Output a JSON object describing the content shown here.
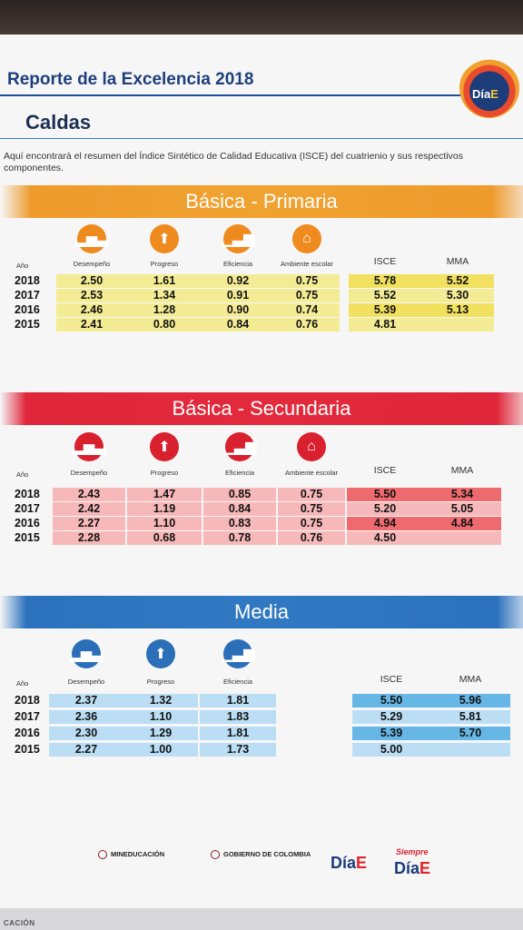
{
  "header": {
    "title": "Reporte de la Excelencia 2018",
    "region": "Caldas",
    "logo": {
      "text": "Día",
      "accent": "E"
    }
  },
  "intro": "Aquí encontrará el resumen del Índice Sintético de Calidad Educativa (ISCE) del cuatrienio y sus respectivos componentes.",
  "columns": {
    "year": "Año",
    "desempeno": "Desempeño",
    "progreso": "Progreso",
    "eficiencia": "Eficiencia",
    "ambiente": "Ambiente escolar",
    "isce": "ISCE",
    "mma": "MMA"
  },
  "colors": {
    "primaria": "#f0a331",
    "secundaria": "#e32a3c",
    "media": "#3079c2"
  },
  "primaria": {
    "title": "Básica - Primaria",
    "rows": [
      {
        "year": "2018",
        "desempeno": "2.50",
        "progreso": "1.61",
        "eficiencia": "0.92",
        "ambiente": "0.75",
        "isce": "5.78",
        "mma": "5.52"
      },
      {
        "year": "2017",
        "desempeno": "2.53",
        "progreso": "1.34",
        "eficiencia": "0.91",
        "ambiente": "0.75",
        "isce": "5.52",
        "mma": "5.30"
      },
      {
        "year": "2016",
        "desempeno": "2.46",
        "progreso": "1.28",
        "eficiencia": "0.90",
        "ambiente": "0.74",
        "isce": "5.39",
        "mma": "5.13"
      },
      {
        "year": "2015",
        "desempeno": "2.41",
        "progreso": "0.80",
        "eficiencia": "0.84",
        "ambiente": "0.76",
        "isce": "4.81",
        "mma": ""
      }
    ]
  },
  "secundaria": {
    "title": "Básica - Secundaria",
    "rows": [
      {
        "year": "2018",
        "desempeno": "2.43",
        "progreso": "1.47",
        "eficiencia": "0.85",
        "ambiente": "0.75",
        "isce": "5.50",
        "mma": "5.34"
      },
      {
        "year": "2017",
        "desempeno": "2.42",
        "progreso": "1.19",
        "eficiencia": "0.84",
        "ambiente": "0.75",
        "isce": "5.20",
        "mma": "5.05"
      },
      {
        "year": "2016",
        "desempeno": "2.27",
        "progreso": "1.10",
        "eficiencia": "0.83",
        "ambiente": "0.75",
        "isce": "4.94",
        "mma": "4.84"
      },
      {
        "year": "2015",
        "desempeno": "2.28",
        "progreso": "0.68",
        "eficiencia": "0.78",
        "ambiente": "0.76",
        "isce": "4.50",
        "mma": ""
      }
    ]
  },
  "media": {
    "title": "Media",
    "rows": [
      {
        "year": "2018",
        "desempeno": "2.37",
        "progreso": "1.32",
        "eficiencia": "1.81",
        "isce": "5.50",
        "mma": "5.96"
      },
      {
        "year": "2017",
        "desempeno": "2.36",
        "progreso": "1.10",
        "eficiencia": "1.83",
        "isce": "5.29",
        "mma": "5.81"
      },
      {
        "year": "2016",
        "desempeno": "2.30",
        "progreso": "1.29",
        "eficiencia": "1.81",
        "isce": "5.39",
        "mma": "5.70"
      },
      {
        "year": "2015",
        "desempeno": "2.27",
        "progreso": "1.00",
        "eficiencia": "1.73",
        "isce": "5.00",
        "mma": ""
      }
    ]
  },
  "icons": {
    "desempeno": "podium-icon",
    "progreso": "up-arrow-icon",
    "eficiencia": "rising-bars-icon",
    "ambiente": "school-icon"
  },
  "footer": {
    "mineducacion": "MINEDUCACIÓN",
    "gobierno": "GOBIERNO DE COLOMBIA",
    "dia": "Día",
    "dia_e": "E",
    "siempre": "Siempre",
    "bottom": "CACIÓN"
  }
}
